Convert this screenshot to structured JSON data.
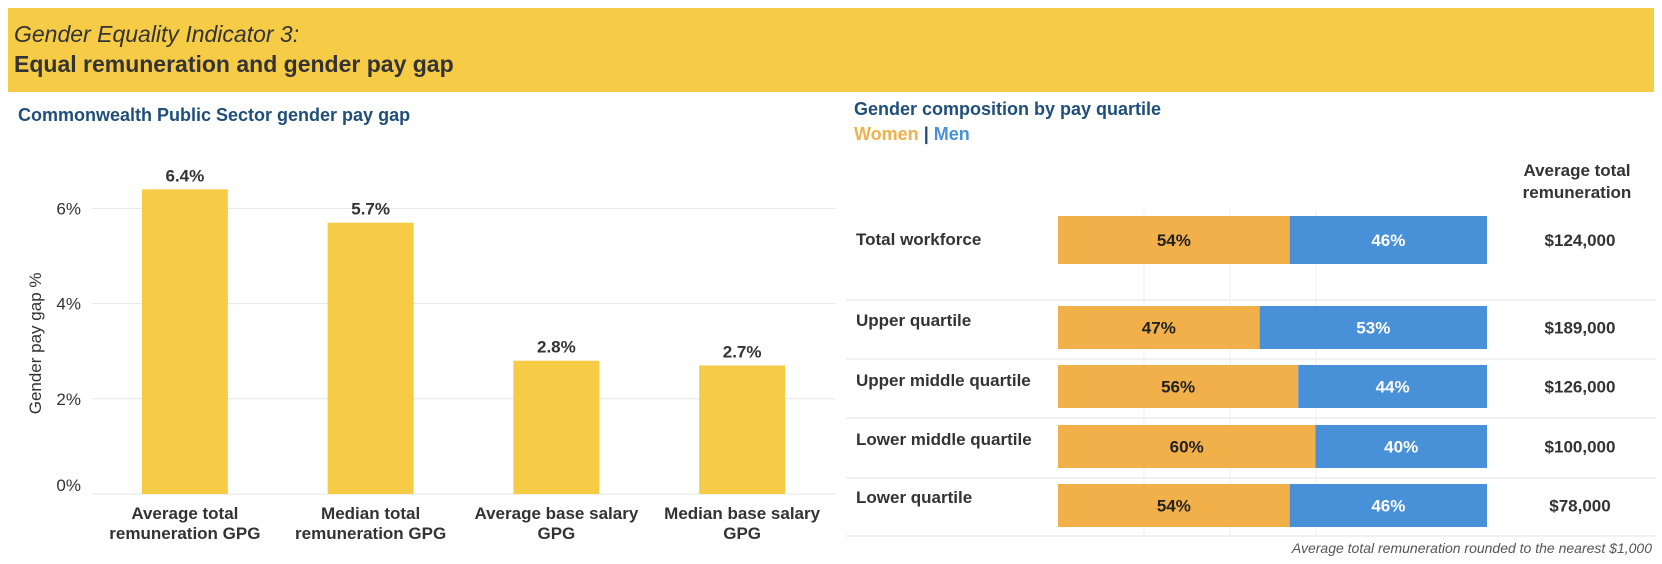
{
  "header": {
    "subtitle": "Gender Equality Indicator 3:",
    "title": "Equal remuneration and gender pay gap"
  },
  "left_panel": {
    "title": "Commonwealth Public Sector gender pay gap"
  },
  "right_panel": {
    "title": "Gender composition by pay quartile",
    "legend_women": "Women",
    "legend_sep": "|",
    "legend_men": "Men",
    "column_header_line1": "Average total",
    "column_header_line2": "remuneration",
    "footnote": "Average total remuneration rounded to the nearest $1,000"
  },
  "colors": {
    "bar": "#f6cb45",
    "women": "#f2b04b",
    "men": "#4891d8",
    "title": "#1f4e79",
    "banner": "#f6cb45"
  },
  "chart_data": [
    {
      "type": "bar",
      "title": "Commonwealth Public Sector gender pay gap",
      "ylabel": "Gender pay gap %",
      "ylim": [
        0,
        7
      ],
      "yticks": [
        0,
        2,
        4,
        6
      ],
      "ytick_labels": [
        "0%",
        "2%",
        "4%",
        "6%"
      ],
      "grid": true,
      "categories": [
        [
          "Average total",
          "remuneration GPG"
        ],
        [
          "Median total",
          "remuneration GPG"
        ],
        [
          "Average base salary",
          "GPG"
        ],
        [
          "Median base salary",
          "GPG"
        ]
      ],
      "values": [
        6.4,
        5.7,
        2.8,
        2.7
      ],
      "value_labels": [
        "6.4%",
        "5.7%",
        "2.8%",
        "2.7%"
      ]
    },
    {
      "type": "bar",
      "orientation": "horizontal-stacked",
      "title": "Gender composition by pay quartile",
      "series": [
        {
          "name": "Women",
          "values": [
            54,
            47,
            56,
            60,
            54
          ]
        },
        {
          "name": "Men",
          "values": [
            46,
            53,
            44,
            40,
            46
          ]
        }
      ],
      "categories": [
        "Total workforce",
        "Upper quartile",
        "Upper middle quartile",
        "Lower middle quartile",
        "Lower quartile"
      ],
      "women_labels": [
        "54%",
        "47%",
        "56%",
        "60%",
        "54%"
      ],
      "men_labels": [
        "46%",
        "53%",
        "44%",
        "40%",
        "46%"
      ],
      "remuneration": [
        "$124,000",
        "$189,000",
        "$126,000",
        "$100,000",
        "$78,000"
      ]
    }
  ]
}
